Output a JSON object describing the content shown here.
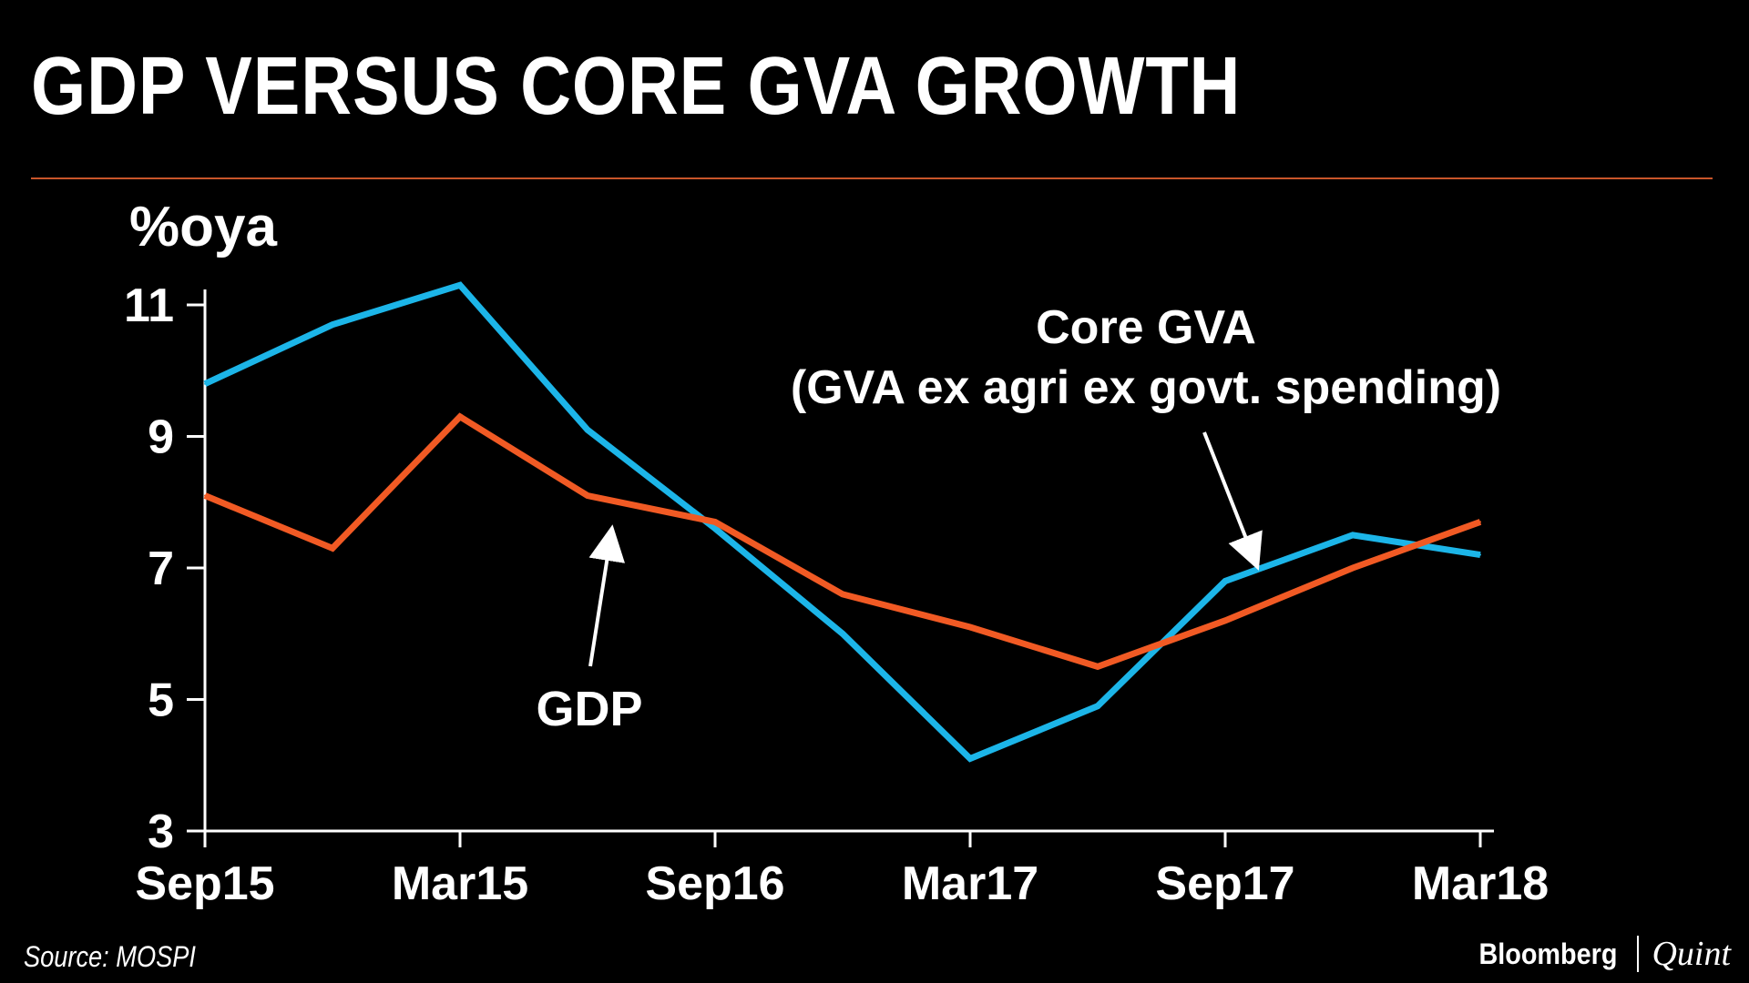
{
  "page": {
    "title": "GDP VERSUS CORE GVA GROWTH"
  },
  "source": "Source: MOSPI",
  "brand": {
    "left": "Bloomberg",
    "right": "Quint"
  },
  "colors": {
    "gdp": "#f15a24",
    "core_gva": "#1cb5e8",
    "rule": "#c8552a"
  },
  "chart_data": {
    "type": "line",
    "title": "GDP VERSUS CORE GVA GROWTH",
    "ylabel": "%oya",
    "xlabel": "",
    "ylim": [
      3,
      11.5
    ],
    "yticks": [
      3,
      5,
      7,
      9,
      11
    ],
    "x_ticklabels": [
      "Sep15",
      "Mar15",
      "Sep16",
      "Mar17",
      "Sep17",
      "Mar18"
    ],
    "x_tick_index": [
      0,
      2,
      4,
      6,
      8,
      10
    ],
    "series": [
      {
        "name": "Core GVA",
        "key": "core_gva",
        "values": [
          9.8,
          10.7,
          11.3,
          9.1,
          7.6,
          6.0,
          4.1,
          4.9,
          6.8,
          7.5,
          7.2
        ]
      },
      {
        "name": "GDP",
        "key": "gdp",
        "values": [
          8.1,
          7.3,
          9.3,
          8.1,
          7.7,
          6.6,
          6.1,
          5.5,
          6.2,
          7.0,
          7.7
        ]
      }
    ],
    "annotations": [
      {
        "key": "core_gva",
        "lines": [
          "Core GVA",
          "(GVA ex agri ex govt. spending)"
        ]
      },
      {
        "key": "gdp",
        "lines": [
          "GDP"
        ]
      }
    ]
  }
}
